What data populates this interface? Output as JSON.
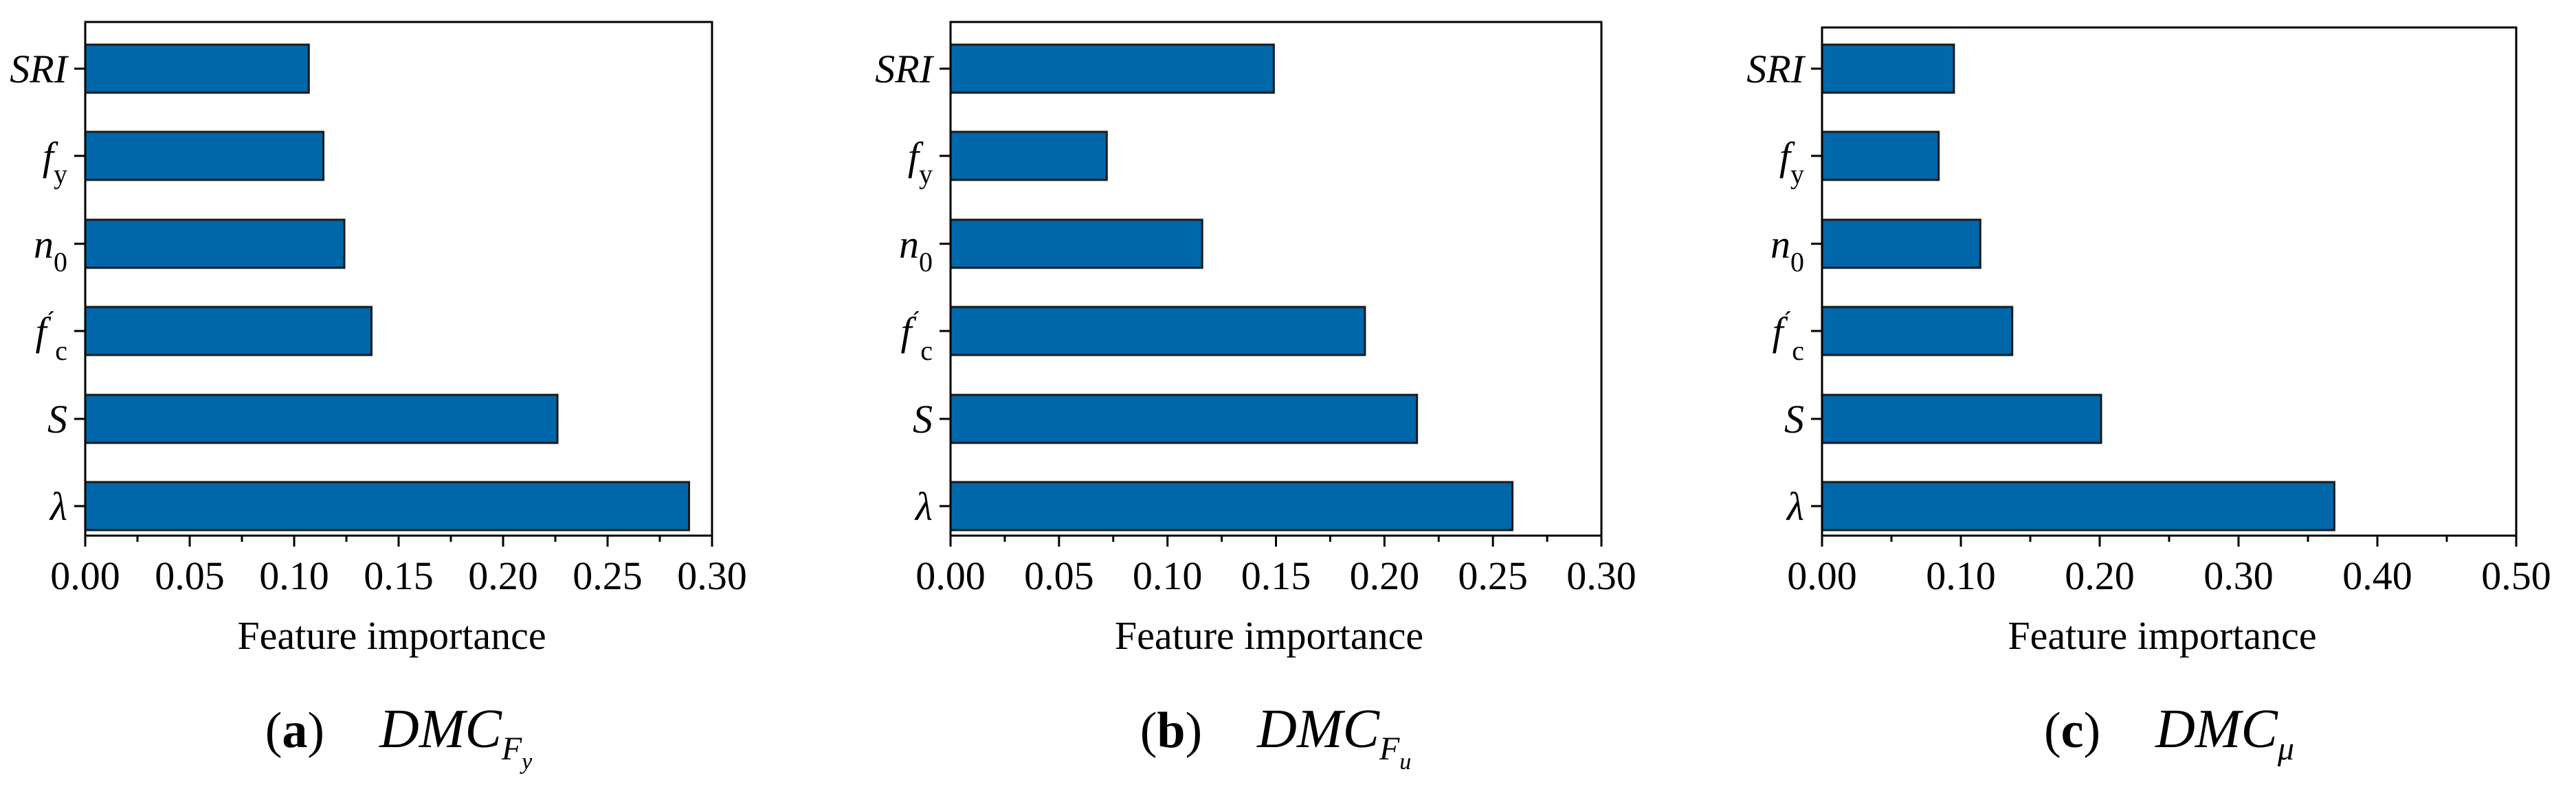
{
  "figure": {
    "bar_color": "#0067aa",
    "bar_edge_color": "#1a1a1a",
    "axis_color": "#000000"
  },
  "chart_data": [
    {
      "type": "bar",
      "orientation": "horizontal",
      "caption_letter": "a",
      "caption_main": "DMC",
      "caption_sub": "F",
      "caption_subsub": "y",
      "xlabel": "Feature importance",
      "xlim": [
        0,
        0.3
      ],
      "xticks": [
        "0.00",
        "0.05",
        "0.10",
        "0.15",
        "0.20",
        "0.25",
        "0.30"
      ],
      "categories": [
        {
          "main": "SRI",
          "sub": "",
          "prime": false
        },
        {
          "main": "f",
          "sub": "y",
          "prime": false
        },
        {
          "main": "n",
          "sub": "0",
          "prime": false
        },
        {
          "main": "f",
          "sub": "c",
          "prime": true
        },
        {
          "main": "S",
          "sub": "",
          "prime": false
        },
        {
          "main": "λ",
          "sub": "",
          "prime": false
        }
      ],
      "values": [
        0.107,
        0.114,
        0.124,
        0.137,
        0.226,
        0.289
      ]
    },
    {
      "type": "bar",
      "orientation": "horizontal",
      "caption_letter": "b",
      "caption_main": "DMC",
      "caption_sub": "F",
      "caption_subsub": "u",
      "xlabel": "Feature importance",
      "xlim": [
        0,
        0.3
      ],
      "xticks": [
        "0.00",
        "0.05",
        "0.10",
        "0.15",
        "0.20",
        "0.25",
        "0.30"
      ],
      "categories": [
        {
          "main": "SRI",
          "sub": "",
          "prime": false
        },
        {
          "main": "f",
          "sub": "y",
          "prime": false
        },
        {
          "main": "n",
          "sub": "0",
          "prime": false
        },
        {
          "main": "f",
          "sub": "c",
          "prime": true
        },
        {
          "main": "S",
          "sub": "",
          "prime": false
        },
        {
          "main": "λ",
          "sub": "",
          "prime": false
        }
      ],
      "values": [
        0.149,
        0.072,
        0.116,
        0.191,
        0.215,
        0.259
      ]
    },
    {
      "type": "bar",
      "orientation": "horizontal",
      "caption_letter": "c",
      "caption_main": "DMC",
      "caption_sub": "μ",
      "caption_subsub": "",
      "xlabel": "Feature importance",
      "xlim": [
        0,
        0.5
      ],
      "xticks": [
        "0.00",
        "0.10",
        "0.20",
        "0.30",
        "0.40",
        "0.50"
      ],
      "categories": [
        {
          "main": "SRI",
          "sub": "",
          "prime": false
        },
        {
          "main": "f",
          "sub": "y",
          "prime": false
        },
        {
          "main": "n",
          "sub": "0",
          "prime": false
        },
        {
          "main": "f",
          "sub": "c",
          "prime": true
        },
        {
          "main": "S",
          "sub": "",
          "prime": false
        },
        {
          "main": "λ",
          "sub": "",
          "prime": false
        }
      ],
      "values": [
        0.095,
        0.084,
        0.114,
        0.137,
        0.201,
        0.369
      ]
    }
  ]
}
